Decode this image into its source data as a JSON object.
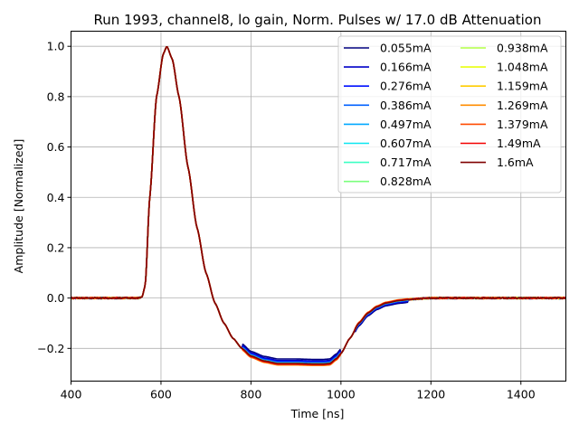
{
  "chart_data": {
    "type": "line",
    "title": "Run 1993, channel8, lo gain, Norm. Pulses w/ 17.0 dB Attenuation",
    "xlabel": "Time [ns]",
    "ylabel": "Amplitude [Normalized]",
    "xlim": [
      400,
      1500
    ],
    "ylim": [
      -0.33,
      1.06
    ],
    "xticks": [
      400,
      600,
      800,
      1000,
      1200,
      1400
    ],
    "xtick_labels": [
      "400",
      "600",
      "800",
      "1000",
      "1200",
      "1400"
    ],
    "yticks": [
      -0.2,
      0.0,
      0.2,
      0.4,
      0.6,
      0.8,
      1.0
    ],
    "ytick_labels": [
      "−0.2",
      "0.0",
      "0.2",
      "0.4",
      "0.6",
      "0.8",
      "1.0"
    ],
    "grid": true,
    "legend": "upper-right",
    "legend_columns": 2,
    "pulse_shape": {
      "x": [
        400,
        550,
        558,
        565,
        575,
        590,
        605,
        613,
        625,
        640,
        660,
        680,
        700,
        720,
        740,
        760,
        780,
        800,
        830,
        860,
        900,
        940,
        960,
        975,
        990,
        1000,
        1020,
        1040,
        1060,
        1080,
        1100,
        1130,
        1160,
        1200,
        1250,
        1300,
        1400,
        1500
      ],
      "y": [
        0.0,
        0.0,
        0.005,
        0.05,
        0.4,
        0.8,
        0.97,
        1.0,
        0.95,
        0.8,
        0.52,
        0.28,
        0.1,
        -0.02,
        -0.1,
        -0.16,
        -0.2,
        -0.23,
        -0.25,
        -0.26,
        -0.26,
        -0.262,
        -0.262,
        -0.26,
        -0.24,
        -0.22,
        -0.16,
        -0.1,
        -0.06,
        -0.035,
        -0.02,
        -0.01,
        -0.004,
        0.0,
        0.0,
        0.0,
        0.0,
        0.0
      ]
    },
    "series": [
      {
        "name": "0.055mA",
        "color": "#00007f",
        "tail": 0.018
      },
      {
        "name": "0.166mA",
        "color": "#0000c8",
        "tail": 0.012
      },
      {
        "name": "0.276mA",
        "color": "#0010ff",
        "tail": 0.008
      },
      {
        "name": "0.386mA",
        "color": "#0060ff",
        "tail": 0.005
      },
      {
        "name": "0.497mA",
        "color": "#00a8ff",
        "tail": 0.003
      },
      {
        "name": "0.607mA",
        "color": "#0ae6f0",
        "tail": 0.0
      },
      {
        "name": "0.717mA",
        "color": "#3bffc4",
        "tail": 0.0
      },
      {
        "name": "0.828mA",
        "color": "#7bff7c",
        "tail": 0.0
      },
      {
        "name": "0.938mA",
        "color": "#b2ff45",
        "tail": 0.0
      },
      {
        "name": "1.048mA",
        "color": "#e8ff0f",
        "tail": 0.0
      },
      {
        "name": "1.159mA",
        "color": "#ffcc00",
        "tail": -0.004
      },
      {
        "name": "1.269mA",
        "color": "#ff8c00",
        "tail": -0.006
      },
      {
        "name": "1.379mA",
        "color": "#ff4a00",
        "tail": -0.004
      },
      {
        "name": "1.49mA",
        "color": "#f20000",
        "tail": -0.002
      },
      {
        "name": "1.6mA",
        "color": "#7f0000",
        "tail": 0.0
      }
    ]
  }
}
